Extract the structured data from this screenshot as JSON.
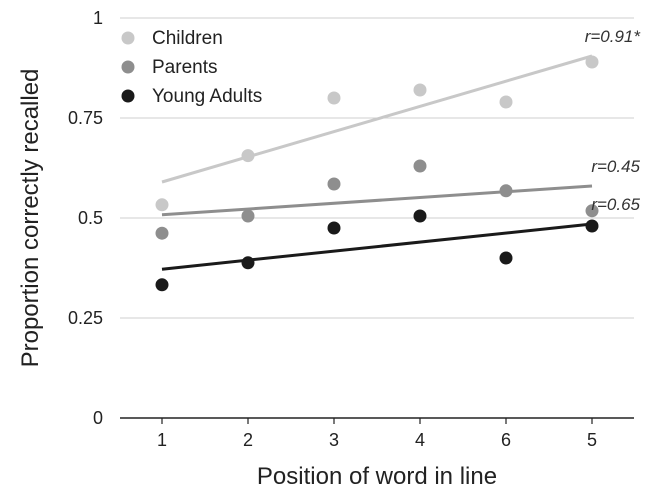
{
  "chart_data": {
    "type": "scatter",
    "title": "",
    "xlabel": "Position of word in line",
    "ylabel": "Proportion correctly recalled",
    "categories": [
      "1",
      "2",
      "3",
      "4",
      "6",
      "5"
    ],
    "ylim": [
      0,
      1
    ],
    "yticks": [
      0,
      0.25,
      0.5,
      0.75,
      1
    ],
    "ytick_labels": [
      "0",
      "0.25",
      "0.5",
      "0.75",
      "1"
    ],
    "grid": "horizontal",
    "legend_position": "top-left",
    "series": [
      {
        "name": "Children",
        "color": "#c8c8c8",
        "values": [
          0.533,
          0.656,
          0.8,
          0.82,
          0.79,
          0.89
        ],
        "trend": [
          0.59,
          0.905
        ],
        "annotation": "r=0.91*"
      },
      {
        "name": "Parents",
        "color": "#8e8e8e",
        "values": [
          0.462,
          0.505,
          0.585,
          0.63,
          0.568,
          0.518
        ],
        "trend": [
          0.508,
          0.58
        ],
        "annotation": "r=0.45"
      },
      {
        "name": "Young Adults",
        "color": "#1a1a1a",
        "values": [
          0.333,
          0.388,
          0.475,
          0.505,
          0.4,
          0.48
        ],
        "trend": [
          0.372,
          0.485
        ],
        "annotation": "r=0.65"
      }
    ]
  }
}
